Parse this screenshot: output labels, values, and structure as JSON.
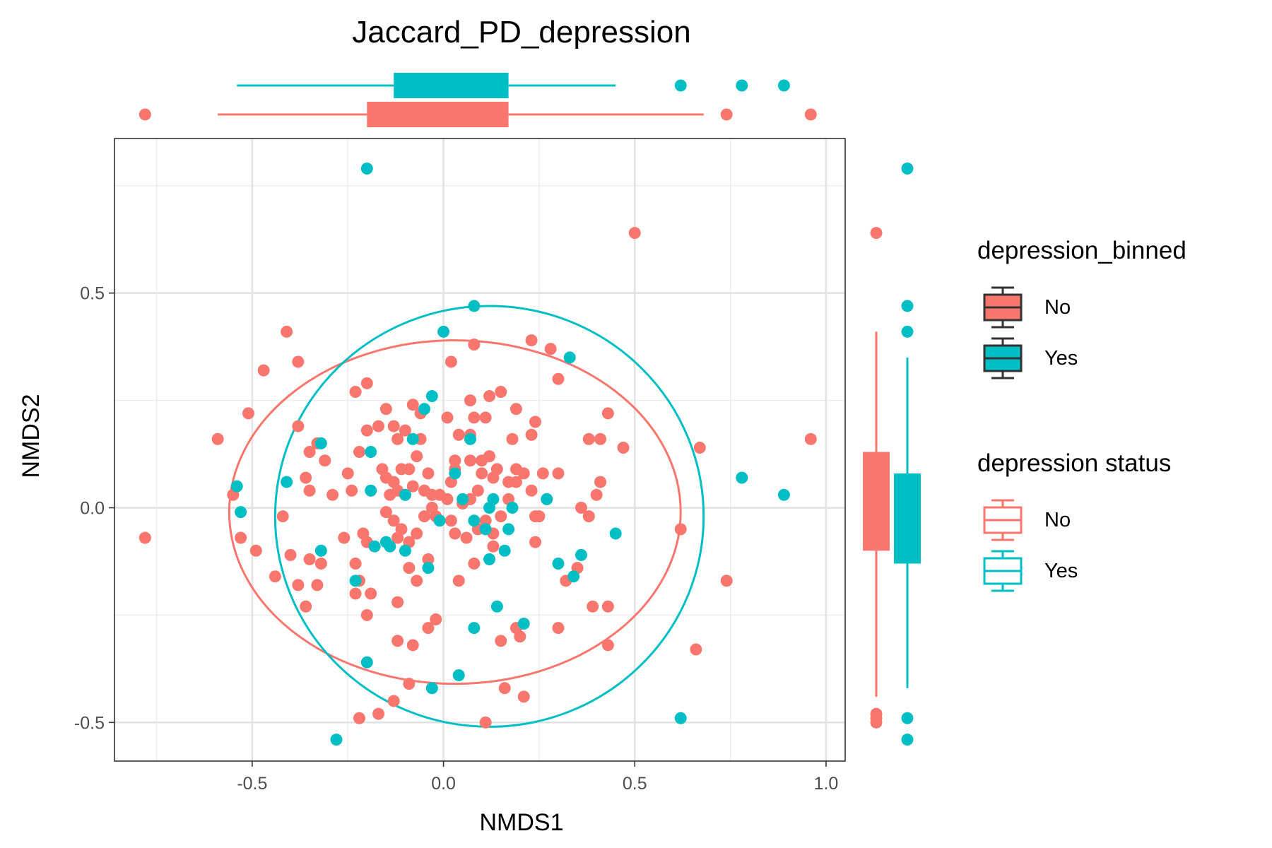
{
  "chart_data": {
    "type": "scatter",
    "title": "Jaccard_PD_depression",
    "xlabel": "NMDS1",
    "ylabel": "NMDS2",
    "xlim": [
      -0.86,
      1.05
    ],
    "ylim": [
      -0.59,
      0.86
    ],
    "x_ticks": [
      -0.5,
      0.0,
      0.5,
      1.0
    ],
    "x_tick_labels": [
      "-0.5",
      "0.0",
      "0.5",
      "1.0"
    ],
    "y_ticks": [
      -0.5,
      0.0,
      0.5
    ],
    "y_tick_labels": [
      "-0.5",
      "0.0",
      "0.5"
    ],
    "grid": true,
    "legend_position": "right",
    "legends": [
      {
        "title": "depression_binned",
        "kind": "filled-box",
        "items": [
          {
            "label": "No",
            "color": "#F8766D"
          },
          {
            "label": "Yes",
            "color": "#00BFC4"
          }
        ]
      },
      {
        "title": "depression status",
        "kind": "outline-box",
        "items": [
          {
            "label": "No",
            "color": "#F8766D"
          },
          {
            "label": "Yes",
            "color": "#00BFC4"
          }
        ]
      }
    ],
    "series": [
      {
        "color": "#F8766D",
        "ellipse": {
          "center": [
            0.03,
            -0.01
          ],
          "radius_x": 0.59,
          "radius_y": 0.4
        },
        "box_x": {
          "whisker_low": -0.59,
          "q1": -0.2,
          "median": -0.06,
          "q3": 0.17,
          "whisker_high": 0.68,
          "outliers": [
            -0.78,
            0.74,
            0.96
          ]
        },
        "box_y": {
          "whisker_low": -0.44,
          "q1": -0.1,
          "median": 0.0,
          "q3": 0.13,
          "whisker_high": 0.41,
          "outliers": [
            0.64,
            -0.48,
            -0.49,
            -0.5
          ]
        },
        "points": [
          [
            -0.78,
            -0.07
          ],
          [
            0.5,
            0.64
          ],
          [
            0.96,
            0.16
          ],
          [
            0.74,
            -0.17
          ],
          [
            0.66,
            -0.33
          ],
          [
            0.62,
            -0.05
          ],
          [
            0.67,
            0.14
          ],
          [
            -0.59,
            0.16
          ],
          [
            -0.55,
            0.03
          ],
          [
            -0.51,
            0.22
          ],
          [
            -0.47,
            0.32
          ],
          [
            -0.41,
            0.41
          ],
          [
            -0.38,
            0.34
          ],
          [
            -0.53,
            -0.07
          ],
          [
            -0.49,
            -0.1
          ],
          [
            -0.44,
            -0.16
          ],
          [
            -0.42,
            -0.02
          ],
          [
            -0.38,
            -0.18
          ],
          [
            -0.36,
            -0.23
          ],
          [
            -0.35,
            -0.12
          ],
          [
            -0.33,
            -0.18
          ],
          [
            -0.32,
            -0.13
          ],
          [
            -0.4,
            -0.11
          ],
          [
            -0.38,
            0.19
          ],
          [
            -0.35,
            0.13
          ],
          [
            -0.33,
            0.15
          ],
          [
            -0.31,
            0.11
          ],
          [
            -0.36,
            0.07
          ],
          [
            -0.35,
            0.04
          ],
          [
            -0.29,
            0.03
          ],
          [
            -0.25,
            0.08
          ],
          [
            -0.24,
            0.04
          ],
          [
            -0.26,
            -0.07
          ],
          [
            -0.23,
            -0.2
          ],
          [
            -0.23,
            -0.13
          ],
          [
            -0.22,
            -0.17
          ],
          [
            -0.2,
            -0.25
          ],
          [
            -0.19,
            -0.2
          ],
          [
            -0.2,
            -0.08
          ],
          [
            -0.21,
            -0.06
          ],
          [
            -0.23,
            0.27
          ],
          [
            -0.2,
            0.29
          ],
          [
            -0.22,
            0.13
          ],
          [
            -0.2,
            0.18
          ],
          [
            -0.17,
            0.19
          ],
          [
            -0.15,
            0.23
          ],
          [
            -0.13,
            0.19
          ],
          [
            -0.12,
            0.16
          ],
          [
            -0.1,
            0.18
          ],
          [
            -0.08,
            0.24
          ],
          [
            -0.06,
            0.22
          ],
          [
            -0.06,
            0.16
          ],
          [
            -0.16,
            0.09
          ],
          [
            -0.15,
            0.07
          ],
          [
            -0.13,
            0.06
          ],
          [
            -0.11,
            0.09
          ],
          [
            -0.09,
            0.09
          ],
          [
            -0.07,
            0.12
          ],
          [
            -0.04,
            0.08
          ],
          [
            -0.14,
            0.03
          ],
          [
            -0.12,
            0.04
          ],
          [
            -0.1,
            0.03
          ],
          [
            -0.08,
            0.05
          ],
          [
            -0.05,
            0.04
          ],
          [
            -0.03,
            0.03
          ],
          [
            -0.15,
            -0.01
          ],
          [
            -0.13,
            -0.03
          ],
          [
            -0.12,
            -0.07
          ],
          [
            -0.11,
            -0.05
          ],
          [
            -0.09,
            -0.08
          ],
          [
            -0.07,
            -0.06
          ],
          [
            -0.05,
            -0.02
          ],
          [
            -0.03,
            0.0
          ],
          [
            -0.01,
            0.03
          ],
          [
            -0.02,
            -0.02
          ],
          [
            0.01,
            0.02
          ],
          [
            0.02,
            0.06
          ],
          [
            0.03,
            0.09
          ],
          [
            0.05,
            0.01
          ],
          [
            0.07,
            0.02
          ],
          [
            0.09,
            0.04
          ],
          [
            0.02,
            -0.03
          ],
          [
            0.03,
            -0.06
          ],
          [
            0.06,
            -0.07
          ],
          [
            0.09,
            -0.05
          ],
          [
            0.11,
            -0.03
          ],
          [
            0.13,
            -0.06
          ],
          [
            0.15,
            -0.02
          ],
          [
            0.17,
            0.02
          ],
          [
            0.19,
            0.06
          ],
          [
            0.21,
            0.08
          ],
          [
            0.23,
            0.04
          ],
          [
            0.24,
            -0.02
          ],
          [
            0.24,
            -0.08
          ],
          [
            0.13,
            -0.09
          ],
          [
            0.08,
            -0.13
          ],
          [
            0.04,
            -0.17
          ],
          [
            -0.04,
            -0.12
          ],
          [
            -0.07,
            -0.17
          ],
          [
            -0.09,
            -0.14
          ],
          [
            -0.12,
            -0.22
          ],
          [
            -0.04,
            -0.28
          ],
          [
            -0.02,
            -0.26
          ],
          [
            -0.12,
            -0.31
          ],
          [
            -0.08,
            -0.32
          ],
          [
            -0.09,
            -0.41
          ],
          [
            -0.13,
            -0.45
          ],
          [
            -0.17,
            -0.48
          ],
          [
            -0.22,
            -0.49
          ],
          [
            0.11,
            -0.5
          ],
          [
            0.16,
            -0.42
          ],
          [
            0.21,
            -0.44
          ],
          [
            0.15,
            -0.31
          ],
          [
            0.19,
            -0.28
          ],
          [
            0.2,
            -0.3
          ],
          [
            0.3,
            -0.28
          ],
          [
            0.43,
            -0.23
          ],
          [
            0.43,
            -0.32
          ],
          [
            0.39,
            -0.23
          ],
          [
            0.32,
            -0.17
          ],
          [
            0.35,
            -0.14
          ],
          [
            0.38,
            -0.02
          ],
          [
            0.36,
            0.0
          ],
          [
            0.4,
            0.03
          ],
          [
            0.41,
            0.06
          ],
          [
            0.3,
            0.08
          ],
          [
            0.41,
            0.16
          ],
          [
            0.43,
            0.22
          ],
          [
            0.38,
            0.16
          ],
          [
            0.47,
            0.14
          ],
          [
            0.3,
            0.3
          ],
          [
            0.28,
            0.37
          ],
          [
            0.23,
            0.39
          ],
          [
            0.24,
            0.2
          ],
          [
            0.23,
            0.17
          ],
          [
            0.19,
            0.23
          ],
          [
            0.18,
            0.16
          ],
          [
            0.15,
            0.27
          ],
          [
            0.12,
            0.26
          ],
          [
            0.11,
            0.21
          ],
          [
            0.12,
            0.12
          ],
          [
            0.1,
            0.11
          ],
          [
            0.07,
            0.25
          ],
          [
            0.08,
            0.21
          ],
          [
            0.07,
            0.17
          ],
          [
            0.07,
            0.11
          ],
          [
            0.13,
            0.07
          ],
          [
            0.1,
            0.08
          ],
          [
            0.14,
            0.09
          ],
          [
            0.17,
            0.06
          ],
          [
            0.19,
            0.09
          ],
          [
            0.01,
            0.21
          ],
          [
            0.02,
            0.34
          ],
          [
            0.08,
            0.38
          ],
          [
            0.04,
            0.17
          ],
          [
            0.03,
            0.11
          ],
          [
            0.26,
            0.08
          ],
          [
            0.25,
            -0.02
          ],
          [
            0.27,
            0.02
          ]
        ]
      },
      {
        "color": "#00BFC4",
        "ellipse": {
          "center": [
            0.12,
            -0.02
          ],
          "radius_x": 0.56,
          "radius_y": 0.49
        },
        "box_x": {
          "whisker_low": -0.54,
          "q1": -0.13,
          "median": 0.03,
          "q3": 0.17,
          "whisker_high": 0.45,
          "outliers": [
            0.62,
            0.78,
            0.89
          ]
        },
        "box_y": {
          "whisker_low": -0.42,
          "q1": -0.13,
          "median": -0.04,
          "q3": 0.08,
          "whisker_high": 0.35,
          "outliers": [
            0.79,
            0.47,
            0.41,
            -0.49,
            -0.54
          ]
        },
        "points": [
          [
            -0.2,
            0.79
          ],
          [
            0.08,
            0.47
          ],
          [
            0.0,
            0.41
          ],
          [
            0.33,
            0.35
          ],
          [
            -0.03,
            0.26
          ],
          [
            -0.05,
            0.23
          ],
          [
            -0.08,
            0.16
          ],
          [
            0.07,
            0.16
          ],
          [
            -0.32,
            0.15
          ],
          [
            -0.19,
            0.13
          ],
          [
            -0.54,
            0.05
          ],
          [
            -0.41,
            0.06
          ],
          [
            -0.19,
            0.04
          ],
          [
            -0.1,
            0.03
          ],
          [
            0.03,
            0.08
          ],
          [
            0.05,
            0.02
          ],
          [
            0.13,
            0.02
          ],
          [
            -0.53,
            -0.01
          ],
          [
            -0.32,
            -0.1
          ],
          [
            -0.18,
            -0.09
          ],
          [
            -0.15,
            -0.08
          ],
          [
            -0.1,
            -0.1
          ],
          [
            -0.04,
            -0.14
          ],
          [
            -0.01,
            -0.03
          ],
          [
            0.08,
            -0.03
          ],
          [
            0.11,
            -0.05
          ],
          [
            0.12,
            0.0
          ],
          [
            0.18,
            0.0
          ],
          [
            0.17,
            -0.05
          ],
          [
            0.16,
            -0.1
          ],
          [
            0.12,
            -0.12
          ],
          [
            0.27,
            0.02
          ],
          [
            0.3,
            -0.13
          ],
          [
            0.34,
            -0.16
          ],
          [
            0.36,
            -0.11
          ],
          [
            0.45,
            -0.06
          ],
          [
            0.14,
            -0.23
          ],
          [
            0.21,
            -0.27
          ],
          [
            0.08,
            -0.28
          ],
          [
            0.04,
            -0.39
          ],
          [
            -0.03,
            -0.42
          ],
          [
            -0.2,
            -0.36
          ],
          [
            -0.28,
            -0.54
          ],
          [
            0.62,
            -0.49
          ],
          [
            0.78,
            0.07
          ],
          [
            0.89,
            0.03
          ],
          [
            -0.14,
            -0.09
          ],
          [
            -0.23,
            -0.17
          ]
        ]
      }
    ]
  }
}
